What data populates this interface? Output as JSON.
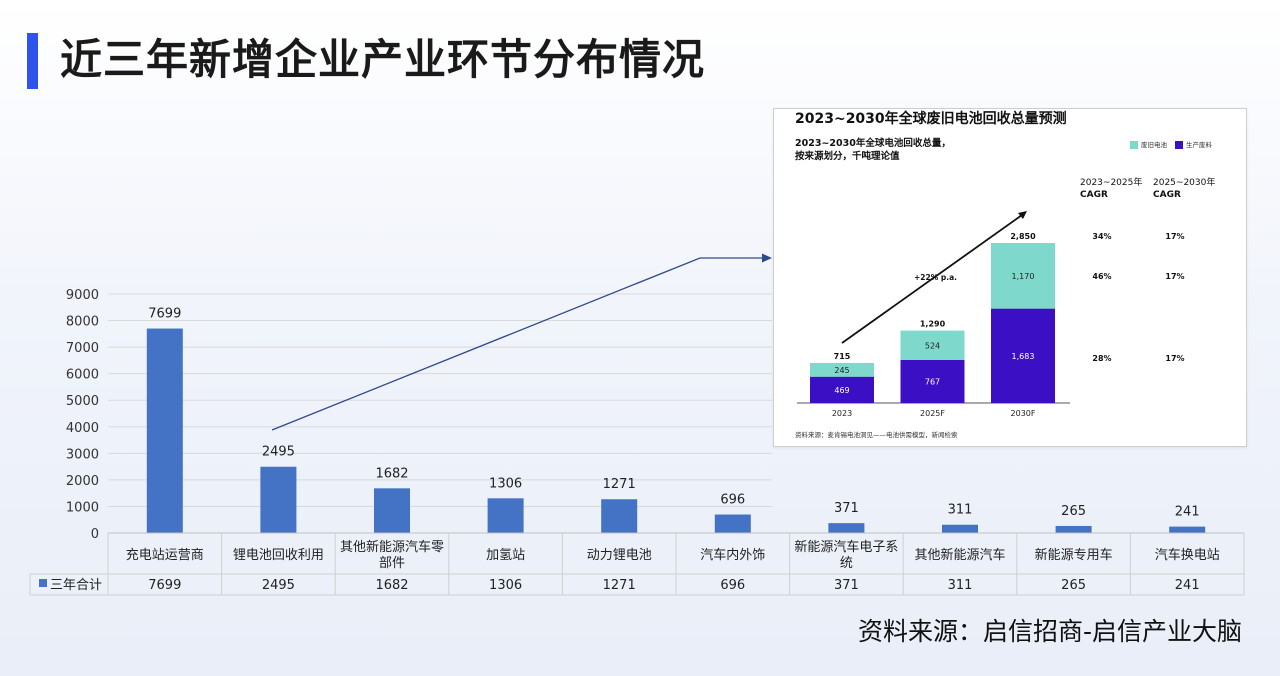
{
  "page": {
    "title": "近三年新增企业产业环节分布情况",
    "source": "资料来源：启信招商-启信产业大脑"
  },
  "colors": {
    "title_accent": "#2f54eb",
    "bar": "#4472c4",
    "inset_battery": "#7ed8cc",
    "inset_scrap": "#3b10c4",
    "arrow": "#2f4a8c"
  },
  "chart_data": [
    {
      "type": "bar",
      "title": "",
      "categories": [
        "充电站运营商",
        "锂电池回收利用",
        "其他新能源汽车零部件",
        "加氢站",
        "动力锂电池",
        "汽车内外饰",
        "新能源汽车电子系统",
        "其他新能源汽车",
        "新能源专用车",
        "汽车换电站"
      ],
      "series": [
        {
          "name": "三年合计",
          "values": [
            7699,
            2495,
            1682,
            1306,
            1271,
            696,
            371,
            311,
            265,
            241
          ]
        }
      ],
      "ylim": [
        0,
        9000
      ],
      "yticks": [
        0,
        1000,
        2000,
        3000,
        4000,
        5000,
        6000,
        7000,
        8000,
        9000
      ],
      "grid": true,
      "legend": "data-table",
      "data_table": true
    },
    {
      "type": "bar",
      "stacked": true,
      "title": "2023~2030年全球废旧电池回收总量预测",
      "subtitle": "2023~2030年全球电池回收总量，按来源划分，千吨理论值",
      "categories": [
        "2023",
        "2025F",
        "2030F"
      ],
      "series": [
        {
          "name": "生产废料",
          "values": [
            469,
            767,
            1683
          ]
        },
        {
          "name": "废旧电池",
          "values": [
            245,
            524,
            1170
          ]
        }
      ],
      "totals": [
        "715",
        "1,290",
        "2,850"
      ],
      "segment_labels": [
        [
          "469",
          "767",
          "1,683"
        ],
        [
          "245",
          "524",
          "1,170"
        ]
      ],
      "annotation": "+22% p.a.",
      "legend": "top-right",
      "cagr": {
        "headers": [
          "2023~2025年 CAGR",
          "2025~2030年 CAGR"
        ],
        "rows": [
          [
            "34%",
            "17%"
          ],
          [
            "46%",
            "17%"
          ],
          [
            "28%",
            "17%"
          ]
        ]
      },
      "note": "资料来源：麦肯锡电池洞见——电池供需模型，新闻检索"
    }
  ]
}
